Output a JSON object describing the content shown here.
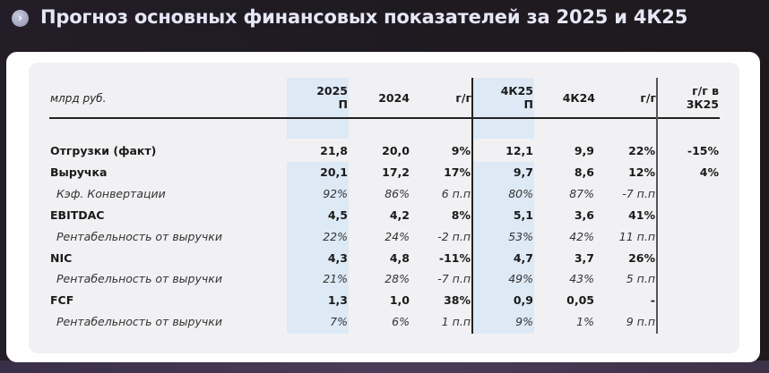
{
  "header": {
    "icon": "chevron-right-circle-icon",
    "icon_glyph": "›",
    "title": "Прогноз основных финансовых показателей за 2025 и 4К25"
  },
  "table": {
    "unit_label": "млрд руб.",
    "columns": [
      {
        "id": "fy2025f",
        "line1": "2025",
        "line2": "П",
        "highlighted": true
      },
      {
        "id": "fy2024",
        "line1": "2024",
        "line2": ""
      },
      {
        "id": "yoy_fy",
        "line1": "г/г",
        "line2": ""
      },
      {
        "id": "q4_25f",
        "line1": "4К25",
        "line2": "П",
        "highlighted": true
      },
      {
        "id": "q4_24",
        "line1": "4К24",
        "line2": ""
      },
      {
        "id": "yoy_q4",
        "line1": "г/г",
        "line2": ""
      },
      {
        "id": "yoy_q3",
        "line1": "г/г в",
        "line2": "3К25"
      }
    ],
    "rows": [
      {
        "label": "Отгрузки (факт)",
        "style": "bold",
        "values": [
          "21,8",
          "20,0",
          "9%",
          "12,1",
          "9,9",
          "22%",
          "-15%"
        ]
      },
      {
        "label": "Выручка",
        "style": "bold",
        "values": [
          "20,1",
          "17,2",
          "17%",
          "9,7",
          "8,6",
          "12%",
          "4%"
        ]
      },
      {
        "label": "Кэф. Конвертации",
        "style": "italic",
        "values": [
          "92%",
          "86%",
          "6 п.п",
          "80%",
          "87%",
          "-7 п.п",
          ""
        ]
      },
      {
        "label": "EBITDAC",
        "style": "bold",
        "values": [
          "4,5",
          "4,2",
          "8%",
          "5,1",
          "3,6",
          "41%",
          ""
        ]
      },
      {
        "label": "Рентабельность от выручки",
        "style": "italic",
        "values": [
          "22%",
          "24%",
          "-2 п.п",
          "53%",
          "42%",
          "11 п.п",
          ""
        ]
      },
      {
        "label": "NIC",
        "style": "bold",
        "values": [
          "4,3",
          "4,8",
          "-11%",
          "4,7",
          "3,7",
          "26%",
          ""
        ]
      },
      {
        "label": "Рентабельность от выручки",
        "style": "italic",
        "values": [
          "21%",
          "28%",
          "-7 п.п",
          "49%",
          "43%",
          "5 п.п",
          ""
        ]
      },
      {
        "label": "FCF",
        "style": "bold",
        "values": [
          "1,3",
          "1,0",
          "38%",
          "0,9",
          "0,05",
          "-",
          ""
        ]
      },
      {
        "label": "Рентабельность от выручки",
        "style": "italic",
        "values": [
          "7%",
          "6%",
          "1 п.п",
          "9%",
          "1%",
          "9 п.п",
          ""
        ]
      }
    ]
  },
  "colors": {
    "background": "#1f1b22",
    "title_text": "#e6e7f6",
    "card": "#ffffff",
    "panel": "#f1f1f4",
    "forecast_highlight": "#dde9f5",
    "text": "#1a1a1a"
  }
}
